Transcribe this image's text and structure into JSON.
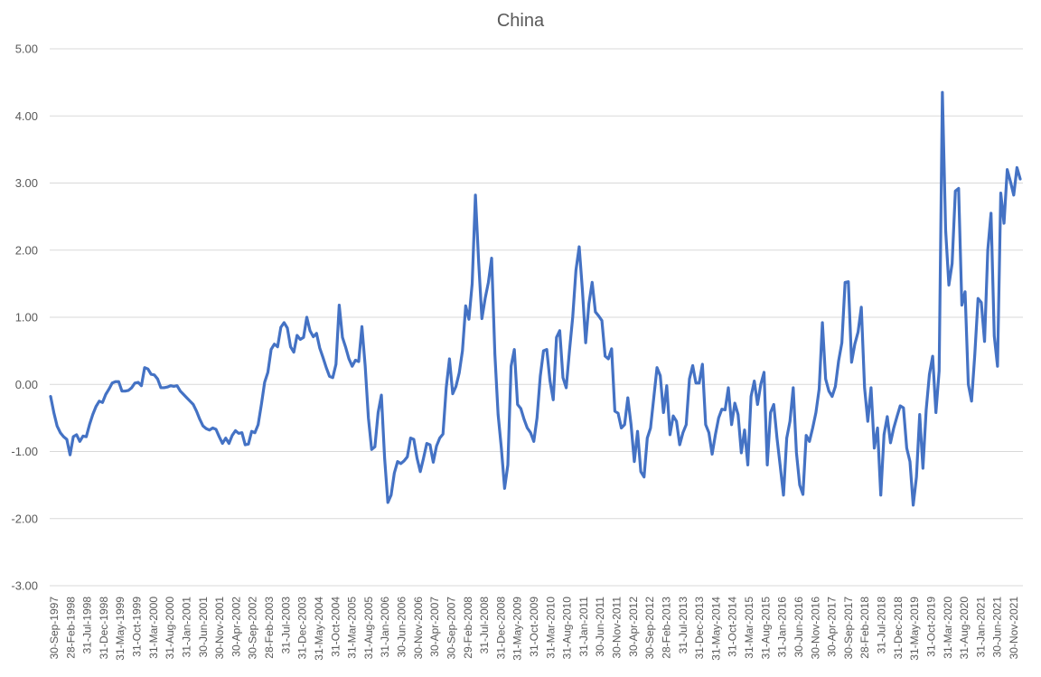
{
  "chart_data": {
    "type": "line",
    "title": "China",
    "xlabel": "",
    "ylabel": "",
    "ylim": [
      -3,
      5
    ],
    "grid": true,
    "legend": "none",
    "yticks": [
      "5.00",
      "4.00",
      "3.00",
      "2.00",
      "1.00",
      "0.00",
      "-1.00",
      "-2.00",
      "-3.00"
    ],
    "xtick_labels": [
      "30-Sep-1997",
      "28-Feb-1998",
      "31-Jul-1998",
      "31-Dec-1998",
      "31-May-1999",
      "31-Oct-1999",
      "31-Mar-2000",
      "31-Aug-2000",
      "31-Jan-2001",
      "30-Jun-2001",
      "30-Nov-2001",
      "30-Apr-2002",
      "30-Sep-2002",
      "28-Feb-2003",
      "31-Jul-2003",
      "31-Dec-2003",
      "31-May-2004",
      "31-Oct-2004",
      "31-Mar-2005",
      "31-Aug-2005",
      "31-Jan-2006",
      "30-Jun-2006",
      "30-Nov-2006",
      "30-Apr-2007",
      "30-Sep-2007",
      "29-Feb-2008",
      "31-Jul-2008",
      "31-Dec-2008",
      "31-May-2009",
      "31-Oct-2009",
      "31-Mar-2010",
      "31-Aug-2010",
      "31-Jan-2011",
      "30-Jun-2011",
      "30-Nov-2011",
      "30-Apr-2012",
      "30-Sep-2012",
      "28-Feb-2013",
      "31-Jul-2013",
      "31-Dec-2013",
      "31-May-2014",
      "31-Oct-2014",
      "31-Mar-2015",
      "31-Aug-2015",
      "31-Jan-2016",
      "30-Jun-2016",
      "30-Nov-2016",
      "30-Apr-2017",
      "30-Sep-2017",
      "28-Feb-2018",
      "31-Jul-2018",
      "31-Dec-2018",
      "31-May-2019",
      "31-Oct-2019",
      "31-Mar-2020",
      "31-Aug-2020",
      "31-Jan-2021",
      "30-Jun-2021",
      "30-Nov-2021"
    ],
    "line_color": "#4472c4",
    "series": [
      {
        "values": [
          -0.18,
          -0.42,
          -0.62,
          -0.72,
          -0.78,
          -0.82,
          -1.05,
          -0.78,
          -0.75,
          -0.85,
          -0.77,
          -0.78,
          -0.6,
          -0.45,
          -0.33,
          -0.25,
          -0.27,
          -0.15,
          -0.07,
          0.02,
          0.04,
          0.04,
          -0.1,
          -0.1,
          -0.09,
          -0.05,
          0.02,
          0.03,
          -0.02,
          0.25,
          0.23,
          0.15,
          0.14,
          0.08,
          -0.05,
          -0.05,
          -0.04,
          -0.02,
          -0.03,
          -0.02,
          -0.1,
          -0.15,
          -0.2,
          -0.25,
          -0.3,
          -0.4,
          -0.52,
          -0.62,
          -0.66,
          -0.68,
          -0.65,
          -0.67,
          -0.78,
          -0.88,
          -0.8,
          -0.88,
          -0.76,
          -0.69,
          -0.73,
          -0.72,
          -0.9,
          -0.89,
          -0.7,
          -0.72,
          -0.6,
          -0.3,
          0.03,
          0.18,
          0.52,
          0.6,
          0.56,
          0.85,
          0.92,
          0.84,
          0.56,
          0.48,
          0.73,
          0.67,
          0.7,
          1.0,
          0.8,
          0.71,
          0.76,
          0.54,
          0.4,
          0.25,
          0.12,
          0.1,
          0.3,
          1.18,
          0.7,
          0.55,
          0.38,
          0.27,
          0.36,
          0.34,
          0.86,
          0.28,
          -0.5,
          -0.97,
          -0.93,
          -0.42,
          -0.16,
          -1.1,
          -1.76,
          -1.65,
          -1.32,
          -1.15,
          -1.18,
          -1.14,
          -1.08,
          -0.8,
          -0.82,
          -1.1,
          -1.3,
          -1.1,
          -0.88,
          -0.9,
          -1.16,
          -0.92,
          -0.8,
          -0.74,
          -0.05,
          0.38,
          -0.14,
          -0.03,
          0.17,
          0.5,
          1.17,
          0.97,
          1.5,
          2.82,
          1.82,
          0.98,
          1.28,
          1.52,
          1.88,
          0.45,
          -0.45,
          -0.95,
          -1.55,
          -1.2,
          0.27,
          0.52,
          -0.3,
          -0.36,
          -0.52,
          -0.65,
          -0.72,
          -0.85,
          -0.5,
          0.12,
          0.5,
          0.52,
          0.05,
          -0.23,
          0.7,
          0.8,
          0.1,
          -0.05,
          0.5,
          1.0,
          1.7,
          2.05,
          1.4,
          0.62,
          1.2,
          1.52,
          1.08,
          1.02,
          0.95,
          0.42,
          0.38,
          0.53,
          -0.4,
          -0.43,
          -0.65,
          -0.6,
          -0.2,
          -0.6,
          -1.15,
          -0.7,
          -1.3,
          -1.38,
          -0.8,
          -0.65,
          -0.2,
          0.25,
          0.13,
          -0.42,
          -0.02,
          -0.75,
          -0.47,
          -0.55,
          -0.9,
          -0.72,
          -0.6,
          0.08,
          0.28,
          0.02,
          0.02,
          0.3,
          -0.6,
          -0.72,
          -1.04,
          -0.75,
          -0.5,
          -0.37,
          -0.38,
          -0.05,
          -0.6,
          -0.28,
          -0.45,
          -1.02,
          -0.68,
          -1.2,
          -0.18,
          0.05,
          -0.3,
          0.0,
          0.18,
          -1.2,
          -0.42,
          -0.3,
          -0.8,
          -1.22,
          -1.65,
          -0.8,
          -0.55,
          -0.05,
          -1.02,
          -1.5,
          -1.64,
          -0.76,
          -0.85,
          -0.65,
          -0.42,
          -0.07,
          0.92,
          0.08,
          -0.1,
          -0.18,
          -0.03,
          0.35,
          0.62,
          1.52,
          1.53,
          0.33,
          0.6,
          0.78,
          1.15,
          -0.05,
          -0.55,
          -0.05,
          -0.95,
          -0.65,
          -1.65,
          -0.75,
          -0.48,
          -0.87,
          -0.65,
          -0.48,
          -0.32,
          -0.35,
          -0.95,
          -1.15,
          -1.8,
          -1.38,
          -0.45,
          -1.25,
          -0.38,
          0.15,
          0.42,
          -0.42,
          0.2,
          4.35,
          2.3,
          1.48,
          1.8,
          2.88,
          2.92,
          1.18,
          1.38,
          0.0,
          -0.25,
          0.45,
          1.28,
          1.22,
          0.64,
          2.0,
          2.55,
          0.72,
          0.27,
          2.85,
          2.4,
          3.2,
          3.02,
          2.82,
          3.23,
          3.06
        ]
      }
    ]
  }
}
